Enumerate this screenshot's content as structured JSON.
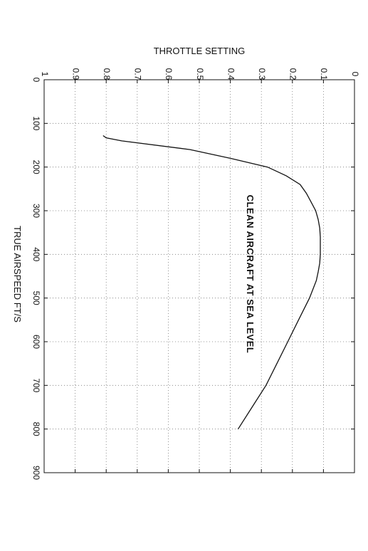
{
  "chart_data": {
    "type": "line",
    "title": "",
    "xlabel": "TRUE  AIRSPEED  FT/S",
    "ylabel": "THROTTLE SETTING",
    "xlim": [
      0,
      900
    ],
    "ylim": [
      0,
      1
    ],
    "x_ticks": [
      0,
      100,
      200,
      300,
      400,
      500,
      600,
      700,
      800,
      900
    ],
    "x_tick_labels": [
      "0",
      "100",
      "200",
      "300",
      "400",
      "500",
      "600",
      "700",
      "800",
      "900"
    ],
    "y_ticks": [
      0,
      0.1,
      0.2,
      0.3,
      0.4,
      0.5,
      0.6,
      0.7,
      0.8,
      0.9,
      1
    ],
    "y_tick_labels": [
      "0",
      "0.1",
      "0.2",
      "0.3",
      "0.4",
      "0.5",
      "0.6",
      "0.7",
      "0.8",
      "0.9",
      "1"
    ],
    "grid": true,
    "orientation": "rotated-90-clockwise",
    "annotation": "CLEAN  AIRCRAFT  AT  SEA LEVEL",
    "series": [
      {
        "x": [
          128,
          133,
          140,
          160,
          180,
          200,
          220,
          240,
          260,
          280,
          300,
          320,
          340,
          360,
          380,
          400,
          420,
          440,
          460,
          500,
          550,
          600,
          650,
          700,
          750,
          800
        ],
        "y": [
          0.81,
          0.8,
          0.75,
          0.53,
          0.4,
          0.28,
          0.22,
          0.175,
          0.155,
          0.14,
          0.125,
          0.117,
          0.112,
          0.11,
          0.11,
          0.11,
          0.112,
          0.117,
          0.123,
          0.145,
          0.18,
          0.215,
          0.25,
          0.285,
          0.33,
          0.375
        ]
      }
    ]
  }
}
